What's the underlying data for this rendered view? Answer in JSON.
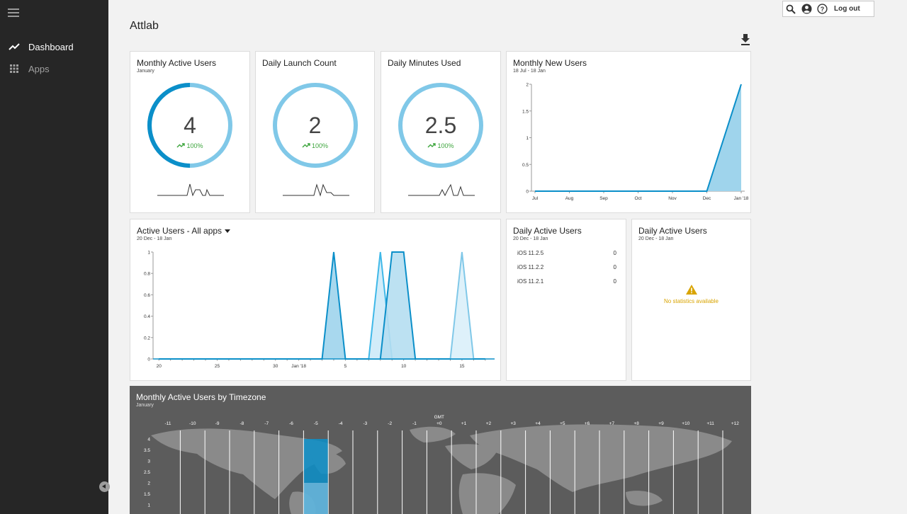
{
  "app": {
    "title": "Attlab"
  },
  "sidebar": {
    "items": [
      {
        "label": "Dashboard",
        "icon": "trend-line-icon",
        "active": true
      },
      {
        "label": "Apps",
        "icon": "grid-icon",
        "active": false
      }
    ]
  },
  "topbar": {
    "logout_label": "Log out"
  },
  "colors": {
    "accent": "#0b8fc9",
    "light_accent": "#80c8e8",
    "positive": "#3da53d",
    "warning": "#d9a400"
  },
  "cards": {
    "monthly_active_users": {
      "title": "Monthly Active Users",
      "subtitle": "January",
      "value": "4",
      "change": "100%",
      "ring_fraction": 0.5
    },
    "daily_launch_count": {
      "title": "Daily Launch Count",
      "value": "2",
      "change": "100%"
    },
    "daily_minutes_used": {
      "title": "Daily Minutes Used",
      "value": "2.5",
      "change": "100%"
    },
    "monthly_new_users": {
      "title": "Monthly New Users",
      "subtitle": "18 Jul - 18 Jan"
    },
    "active_users": {
      "title": "Active Users - All apps",
      "subtitle": "20 Dec - 18 Jan"
    },
    "daily_active_users_os": {
      "title": "Daily Active Users",
      "subtitle": "20 Dec - 18 Jan",
      "rows": [
        {
          "label": "iOS 11.2.5",
          "value": "0"
        },
        {
          "label": "iOS 11.2.2",
          "value": "0"
        },
        {
          "label": "iOS 11.2.1",
          "value": "0"
        }
      ]
    },
    "daily_active_users_empty": {
      "title": "Daily Active Users",
      "subtitle": "20 Dec - 18 Jan",
      "message": "No statistics available"
    },
    "timezone": {
      "title": "Monthly Active Users by Timezone",
      "subtitle": "January",
      "gmt_label": "GMT"
    }
  },
  "chart_data": [
    {
      "type": "area",
      "x": [
        "Jul",
        "Aug",
        "Sep",
        "Oct",
        "Nov",
        "Dec",
        "Jan '18"
      ],
      "series": [
        {
          "values": [
            0,
            0,
            0,
            0,
            0,
            0,
            2
          ]
        }
      ],
      "ylim": [
        0,
        2
      ],
      "yticks": [
        "0",
        "0.5",
        "1",
        "1.5",
        "2"
      ]
    },
    {
      "type": "area",
      "xticks": [
        "20",
        "25",
        "30",
        "Jan '18",
        "5",
        "10",
        "15"
      ],
      "xticks_day": [
        20,
        25,
        30,
        32,
        36,
        41,
        46
      ],
      "ylim": [
        0,
        1
      ],
      "yticks": [
        "0",
        "0.2",
        "0.4",
        "0.6",
        "0.8",
        "1"
      ],
      "series": [
        {
          "color": "#0b8fc9",
          "points": [
            [
              20,
              0
            ],
            [
              34,
              0
            ],
            [
              35,
              1
            ],
            [
              36,
              0
            ],
            [
              48,
              0
            ]
          ]
        },
        {
          "color": "#3fb8e8",
          "points": [
            [
              38,
              0
            ],
            [
              39,
              1
            ],
            [
              40,
              0
            ]
          ]
        },
        {
          "color": "#0b8fc9",
          "points": [
            [
              39,
              0
            ],
            [
              40,
              1
            ],
            [
              41,
              1
            ],
            [
              42,
              0
            ]
          ]
        },
        {
          "color": "#80c8e8",
          "points": [
            [
              45,
              0
            ],
            [
              46,
              1
            ],
            [
              47,
              0
            ]
          ]
        }
      ]
    },
    {
      "type": "bar",
      "categories": [
        "-11",
        "-10",
        "-9",
        "-8",
        "-7",
        "-6",
        "-5",
        "-4",
        "-3",
        "-2",
        "-1",
        "+0",
        "+1",
        "+2",
        "+3",
        "+4",
        "+5",
        "+6",
        "+7",
        "+8",
        "+9",
        "+10",
        "+11",
        "+12"
      ],
      "values": [
        0,
        0,
        0,
        0,
        0,
        0,
        4,
        0,
        0,
        0,
        0,
        0,
        0,
        0,
        0,
        0,
        0,
        0,
        0,
        0,
        0,
        0,
        0,
        0
      ],
      "yticks": [
        "4",
        "3.5",
        "3",
        "2.5",
        "2",
        "1.5",
        "1"
      ],
      "ylim": [
        0,
        4
      ]
    }
  ]
}
